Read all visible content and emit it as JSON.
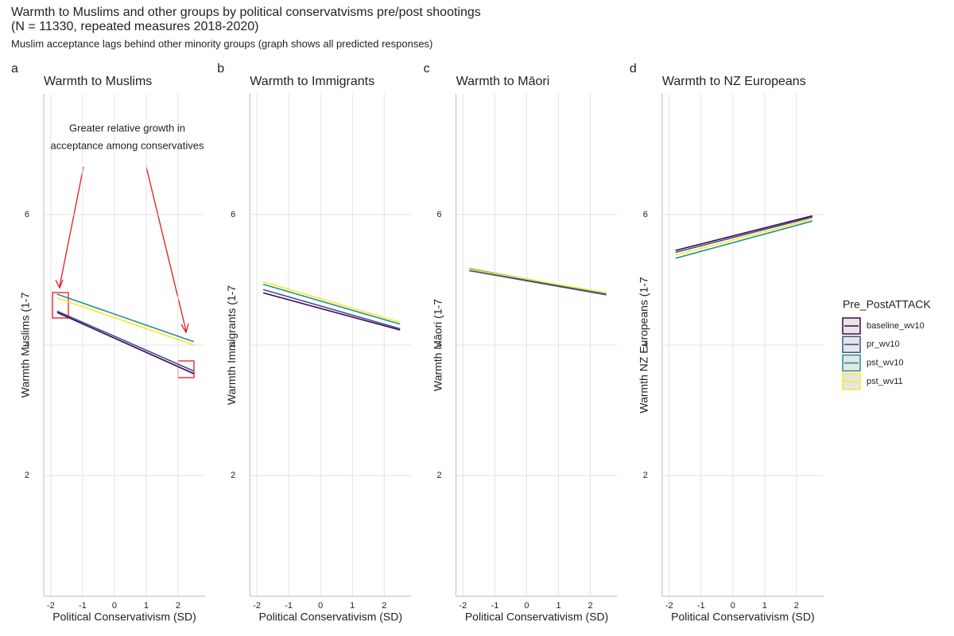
{
  "title": "Warmth to Muslims and other groups by political conservatvisms pre/post shootings",
  "title_line2": "(N = 11330, repeated measures 2018-2020)",
  "subtitle": "Muslim acceptance lags behind other minority groups (graph shows all predicted responses)",
  "legend_title": "Pre_PostATTACK",
  "chart_data": [
    {
      "type": "line",
      "panel": "a",
      "title": "Warmth to Muslims",
      "x_label": "Political Conservativism (SD)",
      "y_label": "Warmth Muslims (1-7",
      "annotation": [
        "Greater relative growth in",
        "acceptance among conservatives"
      ],
      "x": [
        -1.8,
        2.5
      ],
      "xlim": [
        -2.22,
        2.85
      ],
      "ylim": [
        0.15,
        7.85
      ],
      "xticks": [
        -2,
        -1,
        0,
        1,
        2
      ],
      "yticks": [
        2,
        4,
        6
      ],
      "grid": true,
      "series": [
        {
          "name": "baseline_wv10",
          "color": "#440154",
          "values": [
            4.5,
            3.56
          ]
        },
        {
          "name": "pr_wv10",
          "color": "#3b528b",
          "values": [
            4.52,
            3.6
          ]
        },
        {
          "name": "pst_wv10",
          "color": "#21908c",
          "values": [
            4.78,
            4.05
          ]
        },
        {
          "name": "pst_wv11",
          "color": "#fde725",
          "values": [
            4.72,
            4.0
          ]
        }
      ]
    },
    {
      "type": "line",
      "panel": "b",
      "title": "Warmth to Immigrants",
      "x_label": "Political Conservativism (SD)",
      "y_label": "Warmth Immigrants (1-7",
      "x": [
        -1.8,
        2.5
      ],
      "xlim": [
        -2.22,
        2.85
      ],
      "ylim": [
        0.15,
        7.85
      ],
      "xticks": [
        -2,
        -1,
        0,
        1,
        2
      ],
      "yticks": [
        2,
        4,
        6
      ],
      "grid": true,
      "series": [
        {
          "name": "baseline_wv10",
          "color": "#440154",
          "values": [
            4.8,
            4.23
          ]
        },
        {
          "name": "pr_wv10",
          "color": "#3b528b",
          "values": [
            4.85,
            4.25
          ]
        },
        {
          "name": "pst_wv10",
          "color": "#21908c",
          "values": [
            4.93,
            4.32
          ]
        },
        {
          "name": "pst_wv11",
          "color": "#fde725",
          "values": [
            4.97,
            4.35
          ]
        }
      ]
    },
    {
      "type": "line",
      "panel": "c",
      "title": "Warmth to Māori",
      "x_label": "Political Conservativism (SD)",
      "y_label": "Warmth Māori (1-7",
      "x": [
        -1.8,
        2.5
      ],
      "xlim": [
        -2.22,
        2.85
      ],
      "ylim": [
        0.15,
        7.85
      ],
      "xticks": [
        -2,
        -1,
        0,
        1,
        2
      ],
      "yticks": [
        2,
        4,
        6
      ],
      "grid": true,
      "series": [
        {
          "name": "baseline_wv10",
          "color": "#440154",
          "values": [
            5.15,
            4.78
          ]
        },
        {
          "name": "pr_wv10",
          "color": "#3b528b",
          "values": [
            5.14,
            4.77
          ]
        },
        {
          "name": "pst_wv10",
          "color": "#21908c",
          "values": [
            5.17,
            4.79
          ]
        },
        {
          "name": "pst_wv11",
          "color": "#fde725",
          "values": [
            5.16,
            4.8
          ]
        }
      ]
    },
    {
      "type": "line",
      "panel": "d",
      "title": "Warmth to NZ Europeans",
      "x_label": "Political Conservativism (SD)",
      "y_label": "Warmth NZ Europeans (1-7",
      "x": [
        -1.8,
        2.5
      ],
      "xlim": [
        -2.22,
        2.85
      ],
      "ylim": [
        0.15,
        7.85
      ],
      "xticks": [
        -2,
        -1,
        0,
        1,
        2
      ],
      "yticks": [
        2,
        4,
        6
      ],
      "grid": true,
      "series": [
        {
          "name": "baseline_wv10",
          "color": "#440154",
          "values": [
            5.45,
            5.98
          ]
        },
        {
          "name": "pr_wv10",
          "color": "#3b528b",
          "values": [
            5.42,
            5.96
          ]
        },
        {
          "name": "pst_wv10",
          "color": "#21908c",
          "values": [
            5.33,
            5.9
          ]
        },
        {
          "name": "pst_wv11",
          "color": "#fde725",
          "values": [
            5.38,
            5.93
          ]
        }
      ]
    }
  ]
}
